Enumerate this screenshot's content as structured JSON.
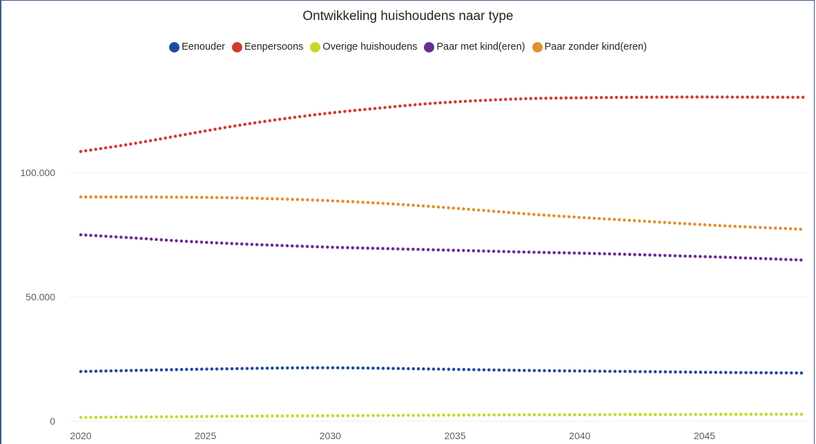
{
  "chart_data": {
    "type": "line",
    "title": "Ontwikkeling huishoudens naar type",
    "xlabel": "",
    "ylabel": "",
    "x_ticks": [
      "2020",
      "2025",
      "2030",
      "2035",
      "2040",
      "2045"
    ],
    "y_ticks": [
      "0",
      "50.000",
      "100.000"
    ],
    "xlim": [
      2020,
      2049
    ],
    "ylim": [
      0,
      140000
    ],
    "legend_position": "top-center",
    "line_style": "dotted",
    "grid": true,
    "x": [
      2020,
      2022,
      2024,
      2026,
      2028,
      2030,
      2032,
      2034,
      2036,
      2038,
      2040,
      2042,
      2044,
      2046,
      2049
    ],
    "series": [
      {
        "name": "Eenouder",
        "color": "#1f4aa0",
        "values": [
          20000,
          20400,
          20800,
          21100,
          21400,
          21500,
          21300,
          21000,
          20700,
          20400,
          20200,
          20000,
          19800,
          19600,
          19400
        ]
      },
      {
        "name": "Eenpersoons",
        "color": "#d03c2e",
        "values": [
          108500,
          111500,
          115000,
          118500,
          121500,
          124000,
          126000,
          127800,
          129000,
          129800,
          130100,
          130300,
          130400,
          130400,
          130300
        ]
      },
      {
        "name": "Overige huishoudens",
        "color": "#c9d62b",
        "values": [
          1500,
          1700,
          1800,
          2000,
          2100,
          2200,
          2300,
          2400,
          2500,
          2600,
          2600,
          2700,
          2700,
          2800,
          2800
        ]
      },
      {
        "name": "Paar met kind(eren)",
        "color": "#6a2d94",
        "values": [
          75000,
          73800,
          72500,
          71500,
          70700,
          70000,
          69500,
          69000,
          68500,
          68000,
          67600,
          67100,
          66500,
          65900,
          64800
        ]
      },
      {
        "name": "Paar zonder kind(eren)",
        "color": "#e0902f",
        "values": [
          90200,
          90200,
          90100,
          89900,
          89400,
          88700,
          87700,
          86400,
          84900,
          83300,
          82000,
          80800,
          79600,
          78500,
          77200
        ]
      }
    ]
  }
}
